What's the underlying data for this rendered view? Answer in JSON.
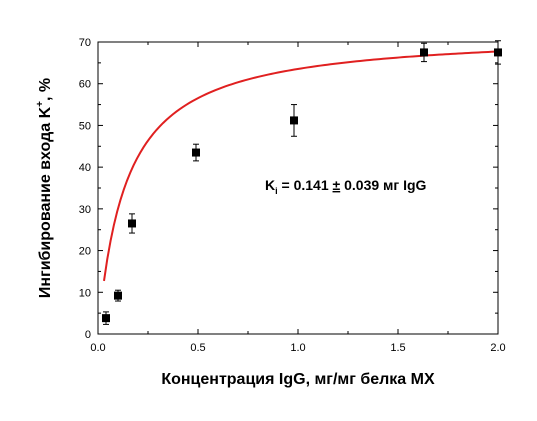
{
  "chart_data": {
    "type": "scatter",
    "title": "",
    "xlabel": "Концентрация IgG, мг/мг белка МХ",
    "ylabel": "Ингибирование входа K",
    "ylabel_sup": "+",
    "ylabel_suffix": ", %",
    "xlim": [
      0.0,
      2.0
    ],
    "ylim": [
      0,
      70
    ],
    "x_ticks": [
      "0.0",
      "0.5",
      "1.0",
      "1.5",
      "2.0"
    ],
    "y_ticks": [
      "0",
      "10",
      "20",
      "30",
      "40",
      "50",
      "60",
      "70"
    ],
    "grid": false,
    "legend": "none",
    "series": [
      {
        "type": "scatter",
        "marker": "square",
        "color": "#000000",
        "x": [
          0.04,
          0.1,
          0.17,
          0.49,
          0.98,
          1.63,
          2.0
        ],
        "y": [
          3.8,
          9.2,
          26.5,
          43.5,
          51.2,
          67.5,
          67.5
        ],
        "err": [
          1.5,
          1.3,
          2.3,
          2.0,
          3.8,
          2.2,
          2.8
        ]
      },
      {
        "type": "line",
        "color": "#e02020",
        "fit": "hyperbolic",
        "x0": 0.03,
        "x1": 2.0
      }
    ],
    "annotation": {
      "prefix": "K",
      "subscript": "i",
      "eq": " = 0.141 ",
      "pm": "±",
      "rest": " 0.039 мг IgG"
    }
  }
}
